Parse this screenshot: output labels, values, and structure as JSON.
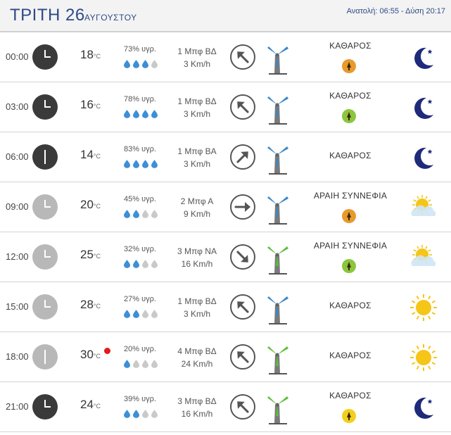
{
  "header": {
    "day": "ΤΡΙΤΗ 26",
    "month": "ΑΥΓΟΥΣΤΟΥ",
    "sun": "Ανατολή: 06:55 - Δύση 20:17"
  },
  "colors": {
    "title": "#2e4a87",
    "drop_filled": "#3d8fd6",
    "drop_empty": "#c9c9c9",
    "turbine_blue": "#3a87c7",
    "turbine_green": "#5bbf3b",
    "moon": "#1e2a7a",
    "sun": "#f5c518",
    "uv_orange": "#e89a2d",
    "uv_green": "#8cc63f",
    "uv_yellow": "#f2cf1e"
  },
  "rows": [
    {
      "time": "00:00",
      "clock": "night",
      "temp": "18",
      "unit": "°C",
      "hot": false,
      "humidity": "73% υγρ.",
      "drops": 3,
      "wind_bf": "1 Μπφ ΒΔ",
      "wind_speed": "3 Km/h",
      "arrow_deg": 135,
      "turbine": "blue",
      "condition": "ΚΑΘΑΡΟΣ",
      "uv": "orange",
      "icon": "moon-icon"
    },
    {
      "time": "03:00",
      "clock": "night",
      "temp": "16",
      "unit": "°C",
      "hot": false,
      "humidity": "78% υγρ.",
      "drops": 4,
      "wind_bf": "1 Μπφ ΒΔ",
      "wind_speed": "3 Km/h",
      "arrow_deg": 135,
      "turbine": "blue",
      "condition": "ΚΑΘΑΡΟΣ",
      "uv": "green",
      "icon": "moon-icon"
    },
    {
      "time": "06:00",
      "clock": "night6",
      "temp": "14",
      "unit": "°C",
      "hot": false,
      "humidity": "83% υγρ.",
      "drops": 4,
      "wind_bf": "1 Μπφ ΒΑ",
      "wind_speed": "3 Km/h",
      "arrow_deg": 225,
      "turbine": "blue",
      "condition": "ΚΑΘΑΡΟΣ",
      "uv": "",
      "icon": "moon-icon"
    },
    {
      "time": "09:00",
      "clock": "day",
      "temp": "20",
      "unit": "°C",
      "hot": false,
      "humidity": "45% υγρ.",
      "drops": 2,
      "wind_bf": "2 Μπφ Α",
      "wind_speed": "9 Km/h",
      "arrow_deg": 270,
      "turbine": "blue",
      "condition": "ΑΡΑΙΗ ΣΥΝΝΕΦΙΑ",
      "uv": "orange",
      "icon": "partly-cloudy-icon"
    },
    {
      "time": "12:00",
      "clock": "day",
      "temp": "25",
      "unit": "°C",
      "hot": false,
      "humidity": "32% υγρ.",
      "drops": 2,
      "wind_bf": "3 Μπφ ΝΑ",
      "wind_speed": "16 Km/h",
      "arrow_deg": 315,
      "turbine": "green",
      "condition": "ΑΡΑΙΗ ΣΥΝΝΕΦΙΑ",
      "uv": "green",
      "icon": "partly-cloudy-icon"
    },
    {
      "time": "15:00",
      "clock": "day",
      "temp": "28",
      "unit": "°C",
      "hot": false,
      "humidity": "27% υγρ.",
      "drops": 2,
      "wind_bf": "1 Μπφ ΒΔ",
      "wind_speed": "3 Km/h",
      "arrow_deg": 135,
      "turbine": "blue",
      "condition": "ΚΑΘΑΡΟΣ",
      "uv": "",
      "icon": "sun-icon"
    },
    {
      "time": "18:00",
      "clock": "day6",
      "temp": "30",
      "unit": "°C",
      "hot": true,
      "humidity": "20% υγρ.",
      "drops": 1,
      "wind_bf": "4 Μπφ ΒΔ",
      "wind_speed": "24 Km/h",
      "arrow_deg": 135,
      "turbine": "green",
      "condition": "ΚΑΘΑΡΟΣ",
      "uv": "",
      "icon": "sun-icon"
    },
    {
      "time": "21:00",
      "clock": "night",
      "temp": "24",
      "unit": "°C",
      "hot": false,
      "humidity": "39% υγρ.",
      "drops": 2,
      "wind_bf": "3 Μπφ ΒΔ",
      "wind_speed": "16 Km/h",
      "arrow_deg": 135,
      "turbine": "green",
      "condition": "ΚΑΘΑΡΟΣ",
      "uv": "yellow",
      "icon": "moon-icon"
    }
  ]
}
